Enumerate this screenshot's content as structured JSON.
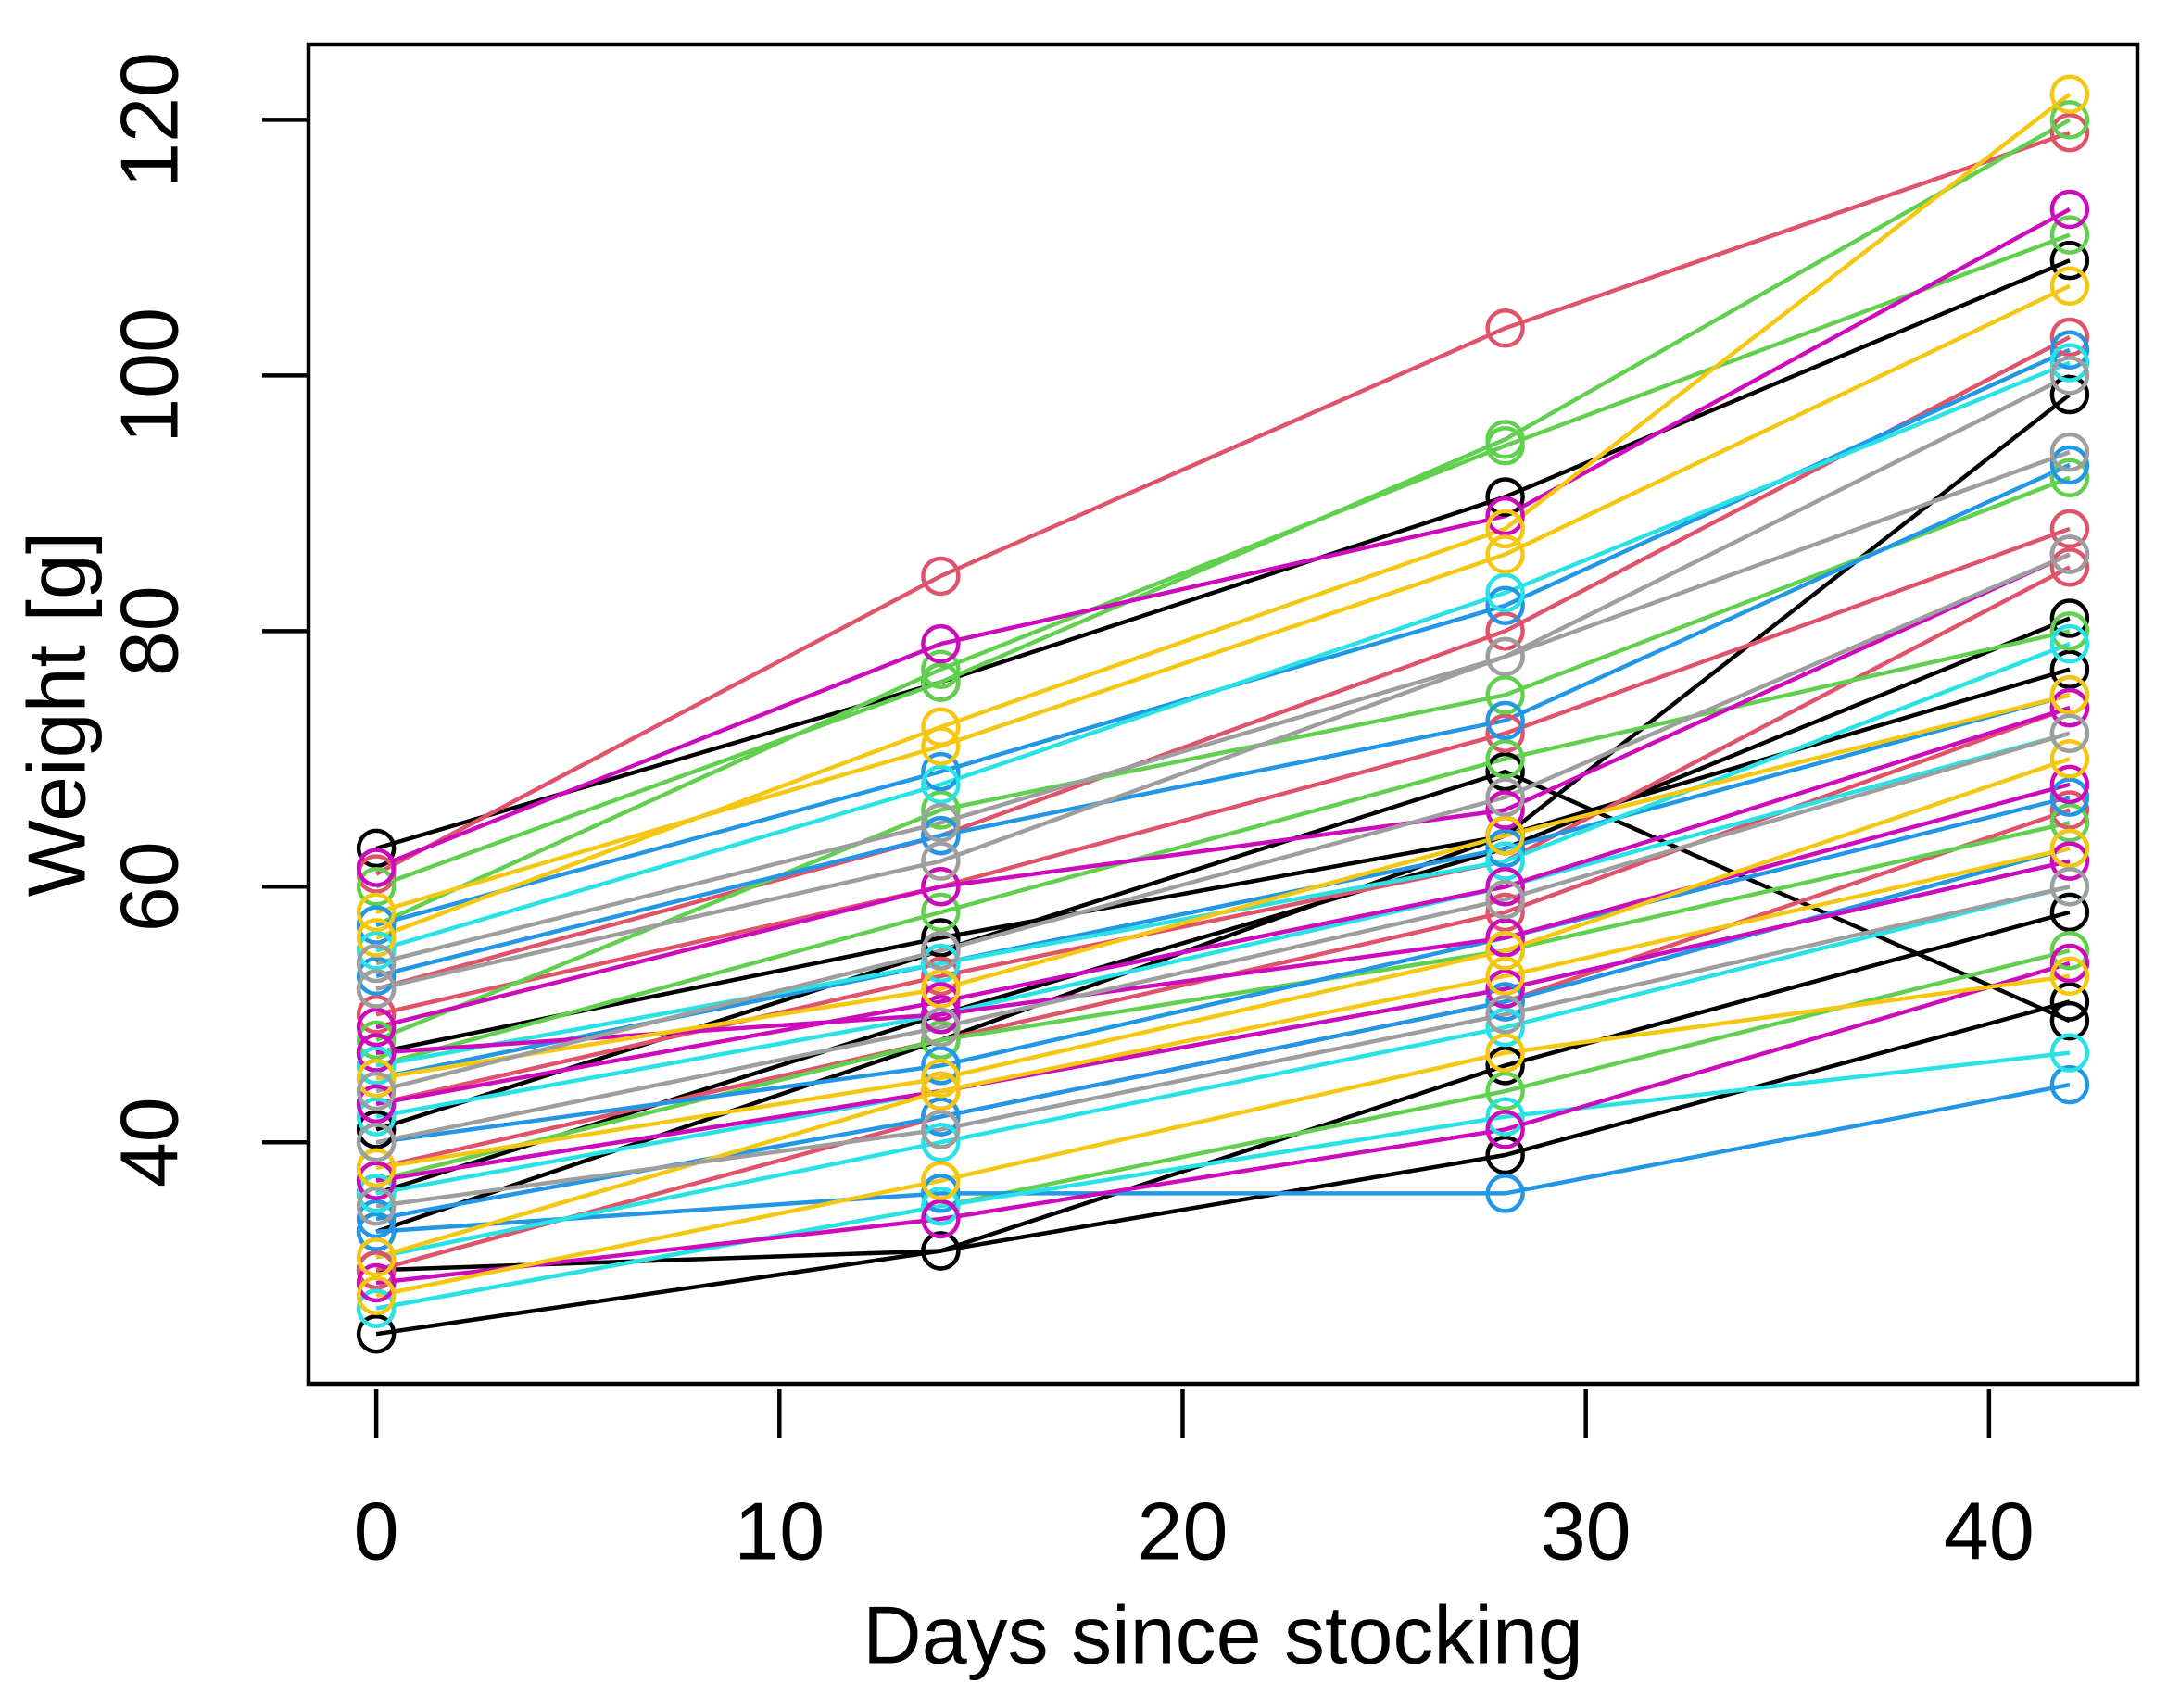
{
  "chart_data": {
    "type": "line",
    "xlabel": "Days since stocking",
    "ylabel": "Weight [g]",
    "x": [
      0,
      14,
      28,
      42
    ],
    "xlim": [
      -1.68,
      43.68
    ],
    "ylim": [
      21.1,
      125.9
    ],
    "xticks": [
      0,
      10,
      20,
      30,
      40
    ],
    "yticks": [
      40,
      60,
      80,
      100,
      120
    ],
    "markers": "open-circle",
    "series": [
      {
        "color": "#000000",
        "values": [
          63,
          76,
          90.5,
          109
        ]
      },
      {
        "color": "#000000",
        "values": [
          41,
          55,
          69,
          49.5
        ]
      },
      {
        "color": "#000000",
        "values": [
          33,
          48,
          64,
          98.5
        ]
      },
      {
        "color": "#000000",
        "values": [
          47,
          56,
          64,
          77
        ]
      },
      {
        "color": "#000000",
        "values": [
          30,
          31.5,
          39,
          51
        ]
      },
      {
        "color": "#000000",
        "values": [
          25,
          31.5,
          46,
          58
        ]
      },
      {
        "color": "#000000",
        "values": [
          36,
          50,
          63,
          81
        ]
      },
      {
        "color": "#DF536B",
        "values": [
          61,
          84.3,
          103.7,
          119
        ]
      },
      {
        "color": "#DF536B",
        "values": [
          52,
          64,
          80,
          103
        ]
      },
      {
        "color": "#DF536B",
        "values": [
          43,
          53,
          62,
          85
        ]
      },
      {
        "color": "#DF536B",
        "values": [
          38,
          48,
          58,
          74
        ]
      },
      {
        "color": "#DF536B",
        "values": [
          30,
          42,
          51,
          66
        ]
      },
      {
        "color": "#DF536B",
        "values": [
          50,
          60,
          72,
          88
        ]
      },
      {
        "color": "#61D04F",
        "values": [
          60,
          76,
          95,
          120
        ]
      },
      {
        "color": "#61D04F",
        "values": [
          57,
          77,
          94.5,
          111
        ]
      },
      {
        "color": "#61D04F",
        "values": [
          48,
          66,
          75,
          92
        ]
      },
      {
        "color": "#61D04F",
        "values": [
          46,
          58,
          70,
          80
        ]
      },
      {
        "color": "#61D04F",
        "values": [
          37,
          48,
          55,
          65
        ]
      },
      {
        "color": "#61D04F",
        "values": [
          27,
          35,
          44,
          55
        ]
      },
      {
        "color": "#2297E6",
        "values": [
          57,
          69,
          82,
          102
        ]
      },
      {
        "color": "#2297E6",
        "values": [
          53,
          64,
          73,
          93
        ]
      },
      {
        "color": "#2297E6",
        "values": [
          45,
          54,
          63,
          75
        ]
      },
      {
        "color": "#2297E6",
        "values": [
          34,
          42,
          51,
          63
        ]
      },
      {
        "color": "#2297E6",
        "values": [
          33,
          36,
          36,
          44.5
        ]
      },
      {
        "color": "#2297E6",
        "values": [
          40,
          46,
          56,
          67
        ]
      },
      {
        "color": "#28E2E5",
        "values": [
          55,
          68,
          83,
          101
        ]
      },
      {
        "color": "#28E2E5",
        "values": [
          46,
          54,
          62,
          79
        ]
      },
      {
        "color": "#28E2E5",
        "values": [
          36,
          44,
          52,
          62
        ]
      },
      {
        "color": "#28E2E5",
        "values": [
          27,
          35,
          42,
          47
        ]
      },
      {
        "color": "#28E2E5",
        "values": [
          31,
          40,
          49,
          60
        ]
      },
      {
        "color": "#28E2E5",
        "values": [
          42,
          50,
          60,
          72
        ]
      },
      {
        "color": "#CD0BBC",
        "values": [
          61.5,
          79,
          89,
          113
        ]
      },
      {
        "color": "#CD0BBC",
        "values": [
          49,
          60,
          66,
          86
        ]
      },
      {
        "color": "#CD0BBC",
        "values": [
          43,
          51,
          60,
          74
        ]
      },
      {
        "color": "#CD0BBC",
        "values": [
          37,
          44,
          52,
          62
        ]
      },
      {
        "color": "#CD0BBC",
        "values": [
          29,
          34,
          41,
          54
        ]
      },
      {
        "color": "#CD0BBC",
        "values": [
          47,
          50,
          56,
          68
        ]
      },
      {
        "color": "#F5C710",
        "values": [
          56,
          72.5,
          88,
          122
        ]
      },
      {
        "color": "#F5C710",
        "values": [
          58,
          71,
          86,
          107
        ]
      },
      {
        "color": "#F5C710",
        "values": [
          45,
          52,
          64,
          75
        ]
      },
      {
        "color": "#F5C710",
        "values": [
          38,
          45,
          55,
          70
        ]
      },
      {
        "color": "#F5C710",
        "values": [
          31,
          44,
          53,
          63
        ]
      },
      {
        "color": "#F5C710",
        "values": [
          28,
          37,
          47,
          53
        ]
      },
      {
        "color": "#9E9E9E",
        "values": [
          54,
          65,
          78,
          100
        ]
      },
      {
        "color": "#9E9E9E",
        "values": [
          52,
          62,
          78,
          94
        ]
      },
      {
        "color": "#9E9E9E",
        "values": [
          44,
          55,
          67,
          86
        ]
      },
      {
        "color": "#9E9E9E",
        "values": [
          40,
          49,
          59,
          72
        ]
      },
      {
        "color": "#9E9E9E",
        "values": [
          35,
          41,
          50,
          60
        ]
      }
    ]
  }
}
